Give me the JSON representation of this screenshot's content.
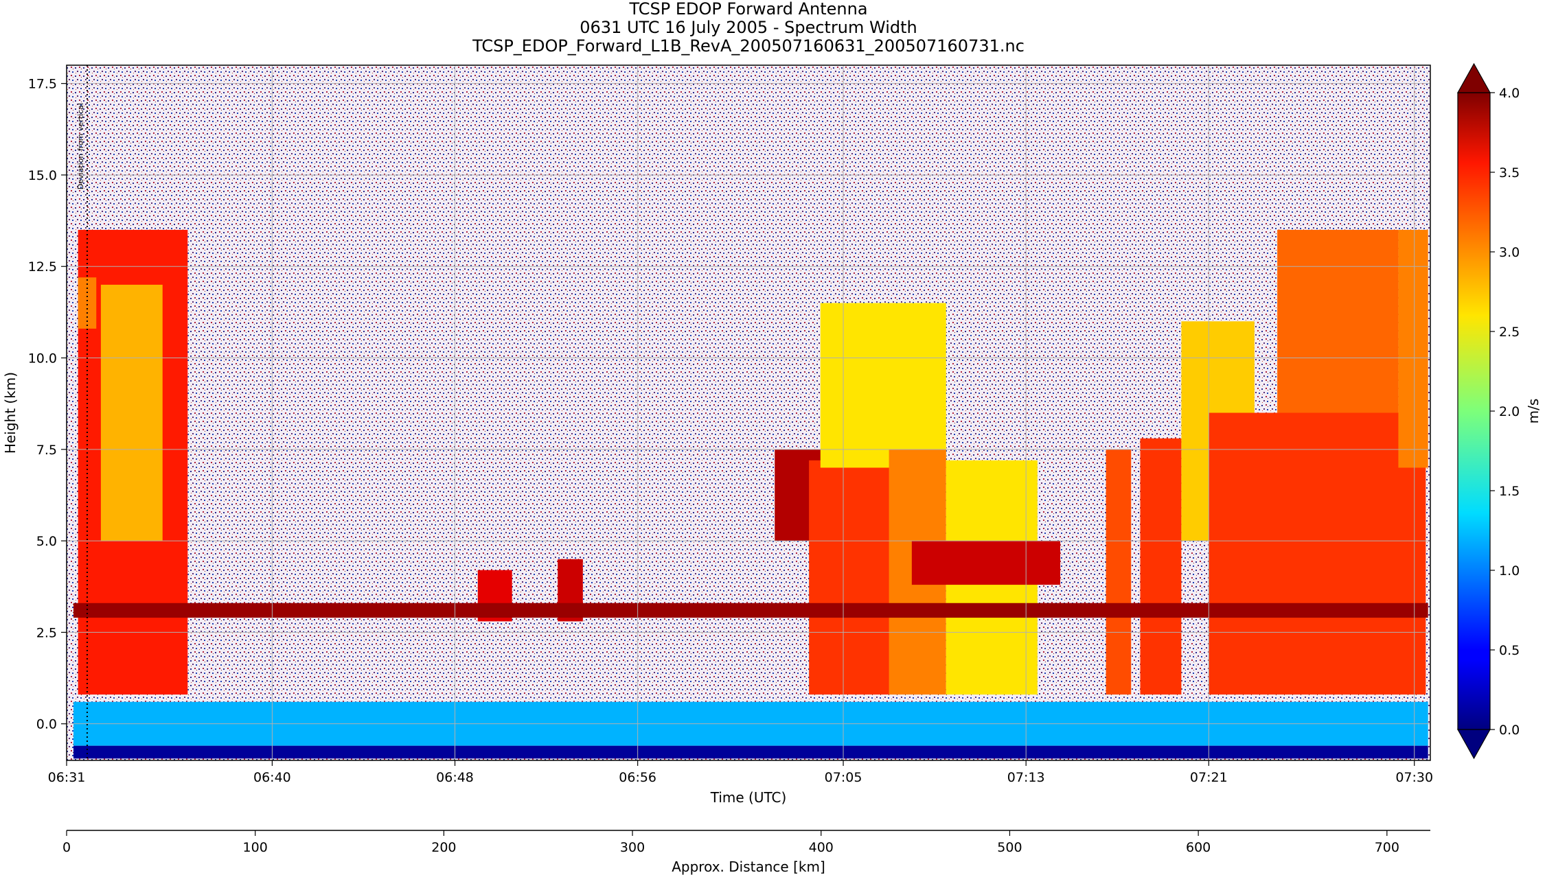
{
  "chart_data": {
    "type": "heatmap",
    "title_lines": [
      "TCSP EDOP Forward Antenna",
      "0631 UTC 16 July 2005 - Spectrum Width",
      "TCSP_EDOP_Forward_L1B_RevA_200507160631_200507160731.nc"
    ],
    "xlabel": "Time (UTC)",
    "ylabel": "Height (km)",
    "x2label": "Approx. Distance [km]",
    "colorbar_label": "m/s",
    "annotation": "Deviation from vertical",
    "xticks": [
      {
        "label": "06:31",
        "min": 0
      },
      {
        "label": "06:40",
        "min": 9
      },
      {
        "label": "06:48",
        "min": 17
      },
      {
        "label": "06:56",
        "min": 25
      },
      {
        "label": "07:05",
        "min": 34
      },
      {
        "label": "07:13",
        "min": 42
      },
      {
        "label": "07:21",
        "min": 50
      },
      {
        "label": "07:30",
        "min": 59
      }
    ],
    "xlim_min": [
      0,
      59.7
    ],
    "yticks": [
      {
        "label": "0.0",
        "v": 0
      },
      {
        "label": "2.5",
        "v": 2.5
      },
      {
        "label": "5.0",
        "v": 5
      },
      {
        "label": "7.5",
        "v": 7.5
      },
      {
        "label": "10.0",
        "v": 10
      },
      {
        "label": "12.5",
        "v": 12.5
      },
      {
        "label": "15.0",
        "v": 15
      },
      {
        "label": "17.5",
        "v": 17.5
      }
    ],
    "ylim": [
      -1.0,
      18.0
    ],
    "x2ticks": [
      {
        "label": "0",
        "v": 0
      },
      {
        "label": "100",
        "v": 100
      },
      {
        "label": "200",
        "v": 200
      },
      {
        "label": "300",
        "v": 300
      },
      {
        "label": "400",
        "v": 400
      },
      {
        "label": "500",
        "v": 500
      },
      {
        "label": "600",
        "v": 600
      },
      {
        "label": "700",
        "v": 700
      }
    ],
    "x2lim": [
      0,
      723
    ],
    "colorbar_ticks": [
      {
        "label": "0.0",
        "v": 0
      },
      {
        "label": "0.5",
        "v": 0.5
      },
      {
        "label": "1.0",
        "v": 1
      },
      {
        "label": "1.5",
        "v": 1.5
      },
      {
        "label": "2.0",
        "v": 2
      },
      {
        "label": "2.5",
        "v": 2.5
      },
      {
        "label": "3.0",
        "v": 3
      },
      {
        "label": "3.5",
        "v": 3.5
      },
      {
        "label": "4.0",
        "v": 4
      }
    ],
    "clim": [
      0,
      4
    ],
    "colormap": "jet",
    "grid": true,
    "cells": [
      {
        "x0": 0.5,
        "x1": 5.3,
        "y0": 0.8,
        "y1": 13.5,
        "v": 3.4
      },
      {
        "x0": 0.5,
        "x1": 1.3,
        "y0": 10.8,
        "y1": 12.2,
        "v": 3.0
      },
      {
        "x0": 1.5,
        "x1": 4.2,
        "y0": 5.0,
        "y1": 12.0,
        "v": 2.8
      },
      {
        "x0": 18.0,
        "x1": 19.5,
        "y0": 2.8,
        "y1": 4.2,
        "v": 3.6
      },
      {
        "x0": 21.5,
        "x1": 22.6,
        "y0": 2.8,
        "y1": 4.5,
        "v": 3.7
      },
      {
        "x0": 31.0,
        "x1": 36.0,
        "y0": 5.0,
        "y1": 7.5,
        "v": 3.8
      },
      {
        "x0": 32.5,
        "x1": 36.5,
        "y0": 0.8,
        "y1": 7.2,
        "v": 3.3
      },
      {
        "x0": 33.0,
        "x1": 38.5,
        "y0": 7.0,
        "y1": 11.5,
        "v": 2.6
      },
      {
        "x0": 36.0,
        "x1": 38.5,
        "y0": 0.8,
        "y1": 7.5,
        "v": 3.0
      },
      {
        "x0": 38.5,
        "x1": 42.5,
        "y0": 0.8,
        "y1": 7.2,
        "v": 2.6
      },
      {
        "x0": 37.0,
        "x1": 43.5,
        "y0": 3.8,
        "y1": 5.0,
        "v": 3.7
      },
      {
        "x0": 45.5,
        "x1": 46.6,
        "y0": 0.8,
        "y1": 7.5,
        "v": 3.2
      },
      {
        "x0": 47.0,
        "x1": 48.8,
        "y0": 0.8,
        "y1": 7.8,
        "v": 3.3
      },
      {
        "x0": 48.8,
        "x1": 52.0,
        "y0": 5.0,
        "y1": 11.0,
        "v": 2.7
      },
      {
        "x0": 50.0,
        "x1": 59.5,
        "y0": 0.8,
        "y1": 8.5,
        "v": 3.3
      },
      {
        "x0": 53.0,
        "x1": 58.3,
        "y0": 8.5,
        "y1": 13.5,
        "v": 3.1
      },
      {
        "x0": 58.3,
        "x1": 59.6,
        "y0": 7.0,
        "y1": 13.5,
        "v": 3.0
      },
      {
        "x0": 0.3,
        "x1": 59.6,
        "y0": 2.9,
        "y1": 3.3,
        "v": 3.9
      },
      {
        "x0": 0.3,
        "x1": 59.6,
        "y0": -0.6,
        "y1": 0.6,
        "v": 1.2
      },
      {
        "x0": 0.3,
        "x1": 59.6,
        "y0": -0.95,
        "y1": -0.6,
        "v": 0.1
      }
    ]
  }
}
